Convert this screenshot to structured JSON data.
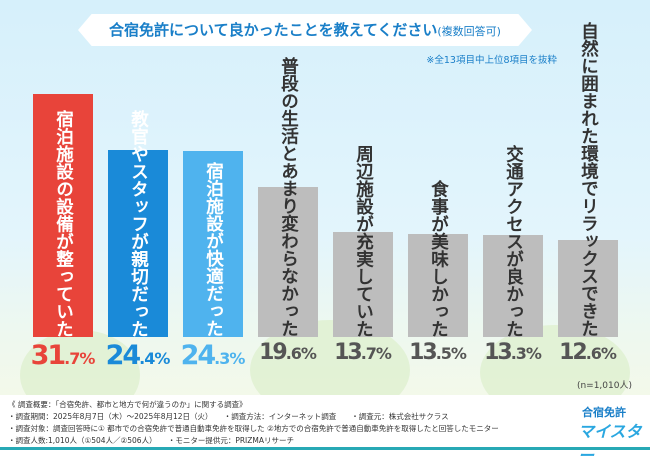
{
  "chart_data": {
    "type": "bar",
    "title": "合宿免許について良かったことを教えてください",
    "title_suffix": "(複数回答可)",
    "subtitle": "※全13項目中上位8項目を抜粋",
    "categories": [
      [
        "宿泊施設の設備が整っていた"
      ],
      [
        "教官やスタッフが親切だった"
      ],
      [
        "宿泊施設が快適だった"
      ],
      [
        "普段の生活と",
        "あまり変わらなかった"
      ],
      [
        "周辺施設が充実していた"
      ],
      [
        "食事が美味しかった"
      ],
      [
        "交通アクセスが良かった"
      ],
      [
        "自然に囲まれた環境で",
        "リラックスできた"
      ]
    ],
    "values": [
      31.7,
      24.4,
      24.3,
      19.6,
      13.7,
      13.5,
      13.3,
      12.6
    ],
    "value_labels": [
      [
        "31",
        ".7%"
      ],
      [
        "24",
        ".4%"
      ],
      [
        "24",
        ".3%"
      ],
      [
        "19",
        ".6%"
      ],
      [
        "13",
        ".7%"
      ],
      [
        "13",
        ".5%"
      ],
      [
        "13",
        ".3%"
      ],
      [
        "12",
        ".6%"
      ]
    ],
    "colors": [
      "#e8443a",
      "#1a8ad8",
      "#4fb3ee",
      "#bdbdbd",
      "#bdbdbd",
      "#bdbdbd",
      "#bdbdbd",
      "#bdbdbd"
    ],
    "text_colors": [
      "#e8443a",
      "#1a8ad8",
      "#4fb3ee",
      "#555555",
      "#555555",
      "#555555",
      "#555555",
      "#555555"
    ],
    "ylim": [
      0,
      32
    ],
    "n_label": "(n=1,010人)"
  },
  "footer": {
    "lines": [
      "《 調査概要：「合宿免許、都市と地方で何が違うのか」に関する調査》",
      "・調査期間：2025年8月7日（木）～2025年8月12日（火）　　・調査方法：インターネット調査　　・調査元：株式会社サクラス",
      "・調査対象：調査回答時に① 都市での合宿免許で普通自動車免許を取得した ②地方での合宿免許で普通自動車免許を取得したと回答したモニター",
      "・調査人数:1,010人（①504人／②506人）　　・モニター提供元：PRIZMAリサーチ"
    ],
    "logo_top": "合宿免許",
    "logo_bottom": "マイスター"
  }
}
